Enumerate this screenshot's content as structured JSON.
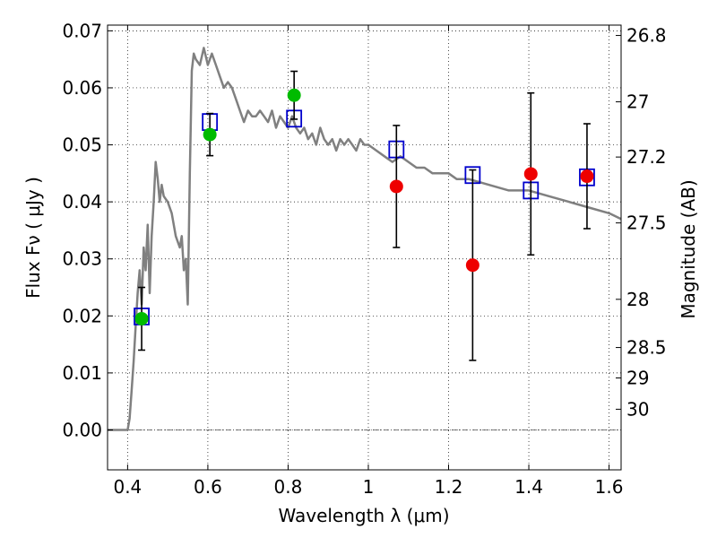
{
  "chart_data": {
    "type": "scatter",
    "xlabel": "Wavelength  λ (μm)",
    "ylabel": "Flux  Fν  ( μJy )",
    "y2label": "Magnitude (AB)",
    "xlim": [
      0.35,
      1.63
    ],
    "ylim": [
      -0.007,
      0.071
    ],
    "grid": true,
    "x_ticks": [
      0.4,
      0.6,
      0.8,
      1.0,
      1.2,
      1.4,
      1.6
    ],
    "x_tick_labels": [
      "0.4",
      "0.6",
      "0.8",
      "1",
      "1.2",
      "1.4",
      "1.6"
    ],
    "y_ticks": [
      0.0,
      0.01,
      0.02,
      0.03,
      0.04,
      0.05,
      0.06,
      0.07
    ],
    "y_tick_labels": [
      "0.00",
      "0.01",
      "0.02",
      "0.03",
      "0.04",
      "0.05",
      "0.06",
      "0.07"
    ],
    "mag_ticks": [
      26.8,
      27,
      27.2,
      27.5,
      28,
      28.5,
      29,
      30
    ],
    "mag_tick_labels": [
      "26.8",
      "27",
      "27.2",
      "27.5",
      "28",
      "28.5",
      "29",
      "30"
    ],
    "colors": {
      "template": "#808080",
      "model_box": "#0000cc",
      "green_points": "#00bb00",
      "red_points": "#ee0000",
      "errorbar": "#000000"
    },
    "series": [
      {
        "kind": "template_line",
        "x": [
          0.35,
          0.4,
          0.405,
          0.41,
          0.415,
          0.42,
          0.425,
          0.43,
          0.435,
          0.44,
          0.445,
          0.45,
          0.455,
          0.46,
          0.465,
          0.47,
          0.475,
          0.48,
          0.485,
          0.49,
          0.5,
          0.51,
          0.52,
          0.53,
          0.535,
          0.54,
          0.545,
          0.55,
          0.555,
          0.56,
          0.565,
          0.57,
          0.58,
          0.59,
          0.6,
          0.61,
          0.62,
          0.63,
          0.64,
          0.65,
          0.66,
          0.67,
          0.68,
          0.69,
          0.7,
          0.71,
          0.72,
          0.73,
          0.74,
          0.75,
          0.76,
          0.77,
          0.78,
          0.79,
          0.8,
          0.81,
          0.82,
          0.83,
          0.84,
          0.85,
          0.86,
          0.87,
          0.88,
          0.89,
          0.9,
          0.91,
          0.92,
          0.93,
          0.94,
          0.95,
          0.96,
          0.97,
          0.98,
          0.99,
          1.0,
          1.02,
          1.04,
          1.06,
          1.08,
          1.1,
          1.12,
          1.14,
          1.16,
          1.18,
          1.2,
          1.22,
          1.25,
          1.3,
          1.35,
          1.4,
          1.45,
          1.5,
          1.55,
          1.6,
          1.63
        ],
        "y": [
          0.0,
          0.0,
          0.002,
          0.007,
          0.012,
          0.018,
          0.024,
          0.028,
          0.022,
          0.032,
          0.028,
          0.036,
          0.024,
          0.034,
          0.04,
          0.047,
          0.044,
          0.04,
          0.043,
          0.041,
          0.04,
          0.038,
          0.034,
          0.032,
          0.034,
          0.028,
          0.03,
          0.022,
          0.045,
          0.063,
          0.066,
          0.065,
          0.064,
          0.067,
          0.064,
          0.066,
          0.064,
          0.062,
          0.06,
          0.061,
          0.06,
          0.058,
          0.056,
          0.054,
          0.056,
          0.055,
          0.055,
          0.056,
          0.055,
          0.054,
          0.056,
          0.053,
          0.055,
          0.054,
          0.053,
          0.055,
          0.053,
          0.052,
          0.053,
          0.051,
          0.052,
          0.05,
          0.053,
          0.051,
          0.05,
          0.051,
          0.049,
          0.051,
          0.05,
          0.051,
          0.05,
          0.049,
          0.051,
          0.05,
          0.05,
          0.049,
          0.048,
          0.047,
          0.048,
          0.047,
          0.046,
          0.046,
          0.045,
          0.045,
          0.045,
          0.044,
          0.044,
          0.043,
          0.042,
          0.042,
          0.041,
          0.04,
          0.039,
          0.038,
          0.037
        ]
      },
      {
        "kind": "model_squares",
        "x": [
          0.435,
          0.605,
          0.815,
          1.07,
          1.26,
          1.405,
          1.545
        ],
        "y": [
          0.0199,
          0.054,
          0.0546,
          0.0492,
          0.0447,
          0.042,
          0.0443
        ]
      },
      {
        "kind": "green_points",
        "x": [
          0.435,
          0.605,
          0.815
        ],
        "y": [
          0.0195,
          0.0518,
          0.0587
        ],
        "yerr": [
          0.0055,
          0.0037,
          0.0042
        ]
      },
      {
        "kind": "red_points",
        "x": [
          1.07,
          1.26,
          1.405,
          1.545
        ],
        "y": [
          0.0427,
          0.0289,
          0.0449,
          0.0445
        ],
        "yerr": [
          0.0107,
          0.0167,
          0.0142,
          0.0092
        ]
      }
    ]
  }
}
